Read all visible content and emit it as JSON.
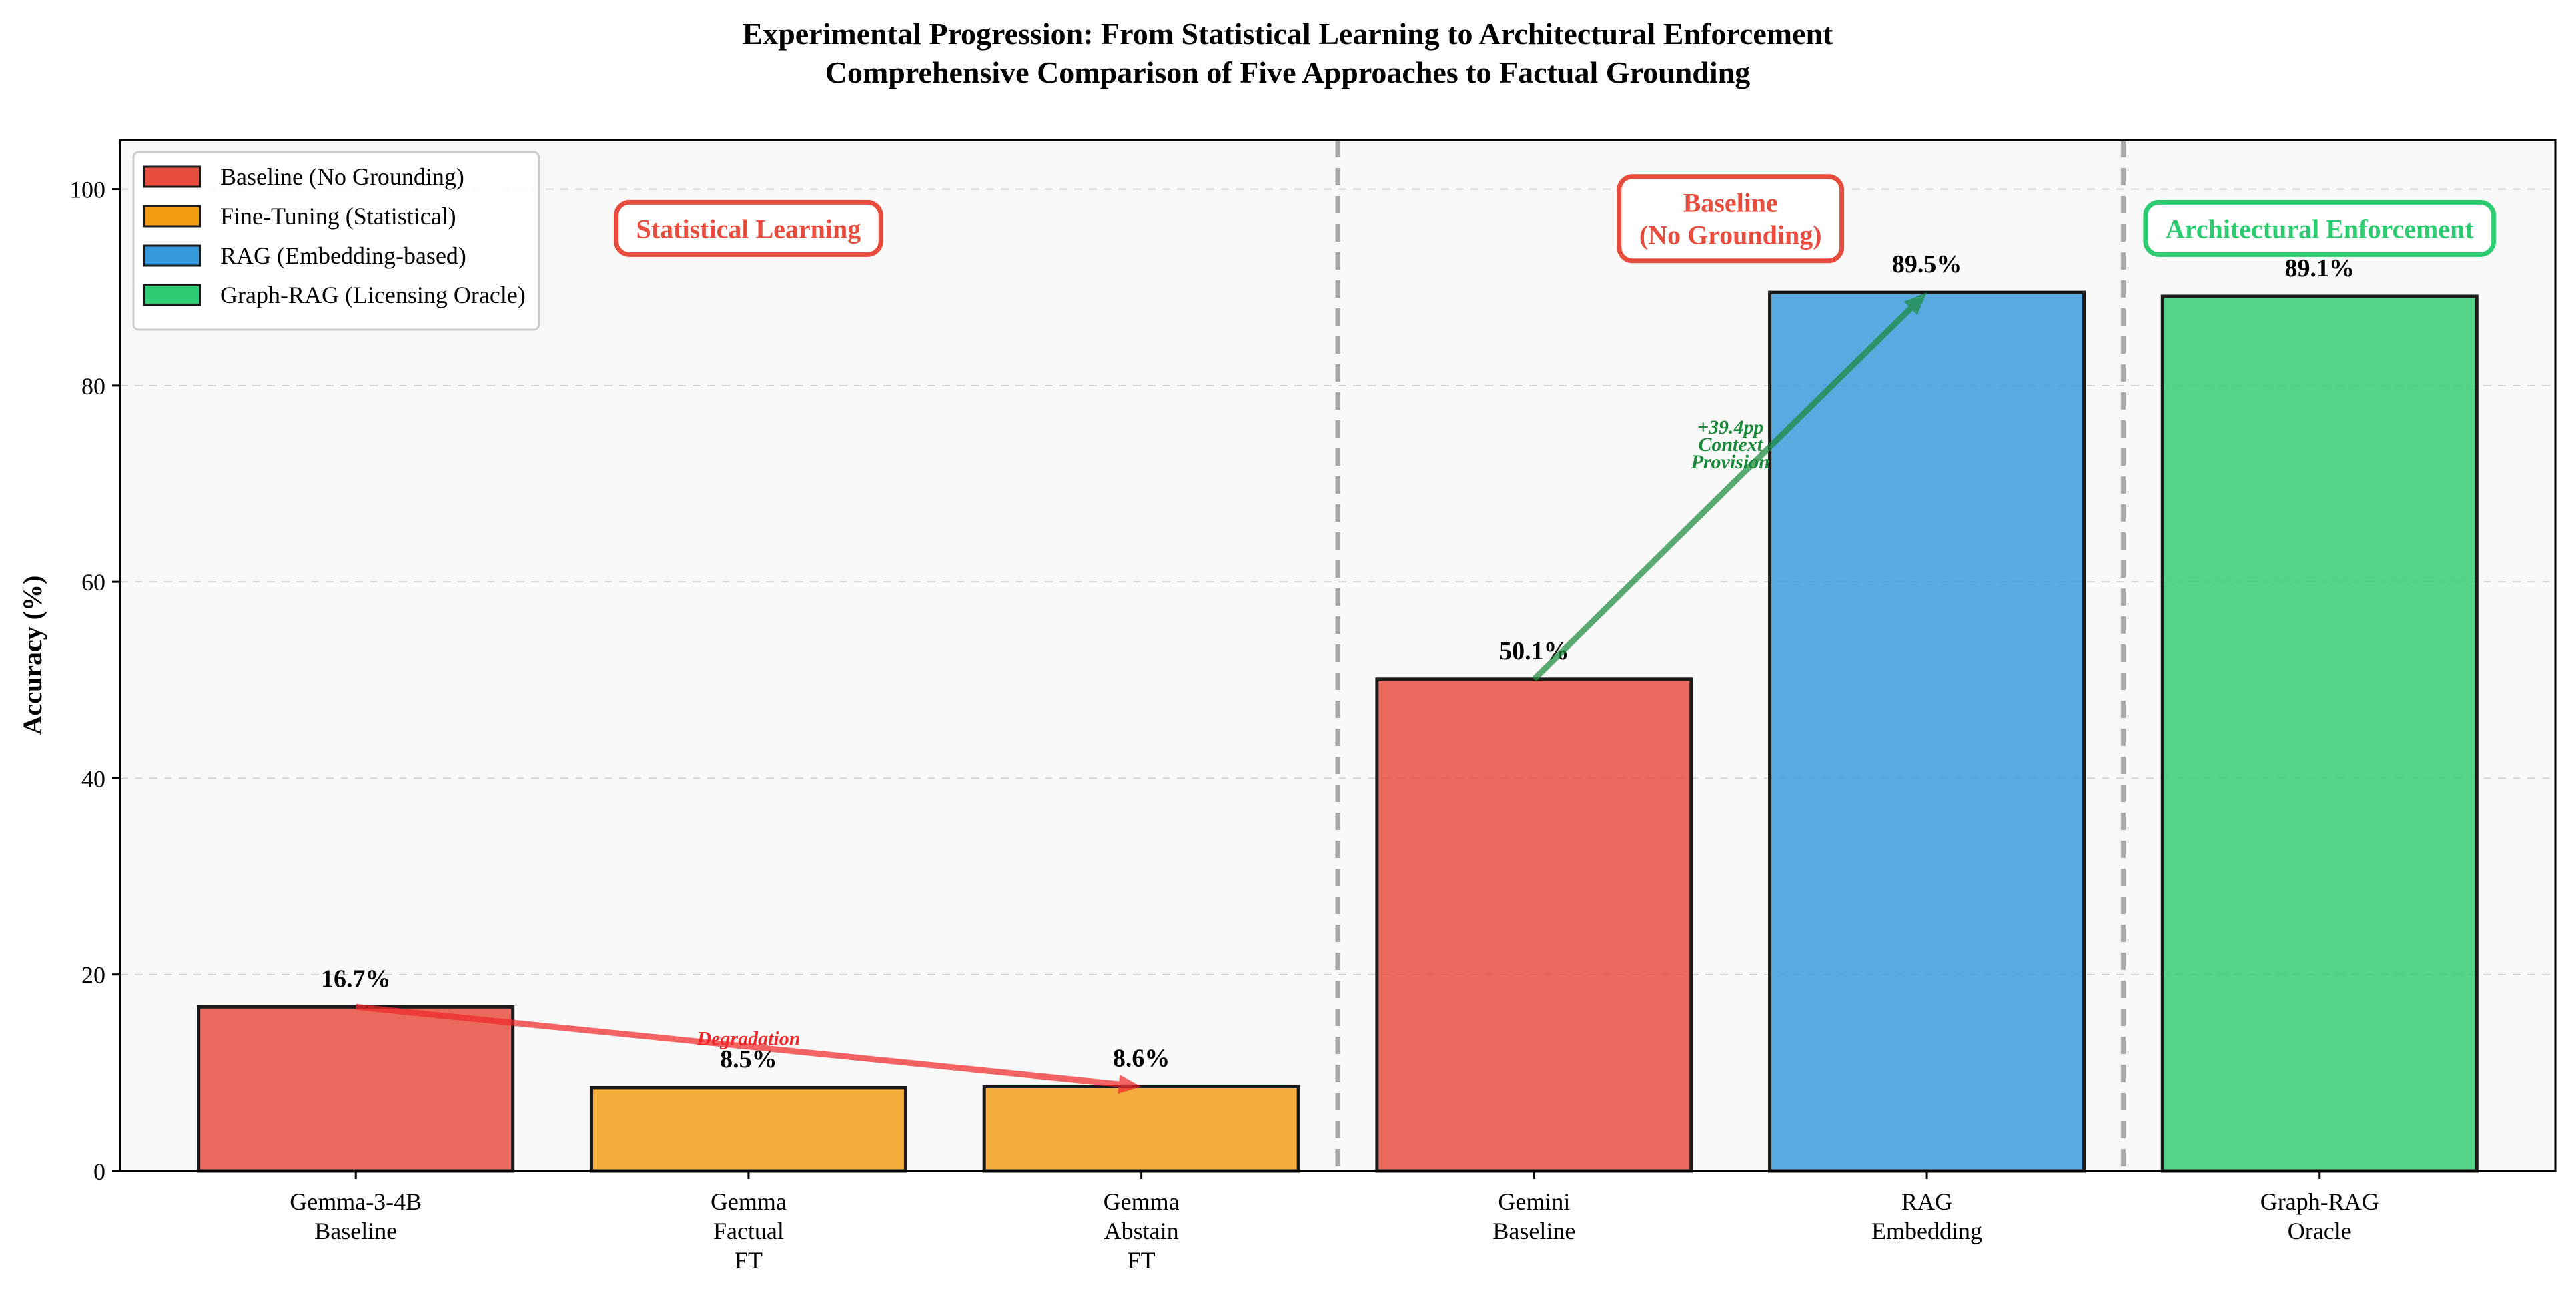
{
  "chart_data": {
    "type": "bar",
    "title": "Experimental Progression: From Statistical Learning to Architectural Enforcement",
    "subtitle": "Comprehensive Comparison of Five Approaches to Factual Grounding",
    "ylabel": "Accuracy (%)",
    "xlabel": "",
    "ylim": [
      0,
      105
    ],
    "yticks": [
      0,
      20,
      40,
      60,
      80,
      100
    ],
    "grid": true,
    "legend_position": "top-left",
    "categories": [
      {
        "label": [
          "Gemma-3-4B",
          "Baseline"
        ],
        "value": 16.7,
        "value_label": "16.7%",
        "series": "baseline"
      },
      {
        "label": [
          "Gemma",
          "Factual",
          "FT"
        ],
        "value": 8.5,
        "value_label": "8.5%",
        "series": "finetune"
      },
      {
        "label": [
          "Gemma",
          "Abstain",
          "FT"
        ],
        "value": 8.6,
        "value_label": "8.6%",
        "series": "finetune"
      },
      {
        "label": [
          "Gemini",
          "Baseline"
        ],
        "value": 50.1,
        "value_label": "50.1%",
        "series": "baseline"
      },
      {
        "label": [
          "RAG",
          "Embedding"
        ],
        "value": 89.5,
        "value_label": "89.5%",
        "series": "rag"
      },
      {
        "label": [
          "Graph-RAG",
          "Oracle"
        ],
        "value": 89.1,
        "value_label": "89.1%",
        "series": "graphrag"
      }
    ],
    "series": [
      {
        "key": "baseline",
        "name": "Baseline (No Grounding)",
        "color": "#e74c3c"
      },
      {
        "key": "finetune",
        "name": "Fine-Tuning (Statistical)",
        "color": "#f39c12"
      },
      {
        "key": "rag",
        "name": "RAG (Embedding-based)",
        "color": "#3498db"
      },
      {
        "key": "graphrag",
        "name": "Graph-RAG (Licensing Oracle)",
        "color": "#2ecc71"
      }
    ],
    "separators_after_index": [
      2,
      4
    ],
    "section_labels": [
      {
        "lines": [
          "Statistical Learning"
        ],
        "color": "#e74c3c",
        "center_index": 1,
        "y": 96
      },
      {
        "lines": [
          "Baseline",
          "(No Grounding)"
        ],
        "color": "#e74c3c",
        "center_index": 3.5,
        "y": 97
      },
      {
        "lines": [
          "Architectural Enforcement"
        ],
        "color": "#2ecc71",
        "center_index": 5,
        "y": 96
      }
    ],
    "annotations": [
      {
        "from": {
          "index": 0,
          "value": 16.7
        },
        "to": {
          "index": 2,
          "value": 8.6
        },
        "color": "#f0282a",
        "lines": [
          "Degradation"
        ],
        "label_at": {
          "index": 1,
          "value": 13.5
        }
      },
      {
        "from": {
          "index": 3,
          "value": 50.1
        },
        "to": {
          "index": 4,
          "value": 89.5
        },
        "color": "#1a8a3a",
        "lines": [
          "+39.4pp",
          "Context",
          "Provision"
        ],
        "label_at": {
          "index": 3.5,
          "value": 74
        }
      }
    ]
  }
}
